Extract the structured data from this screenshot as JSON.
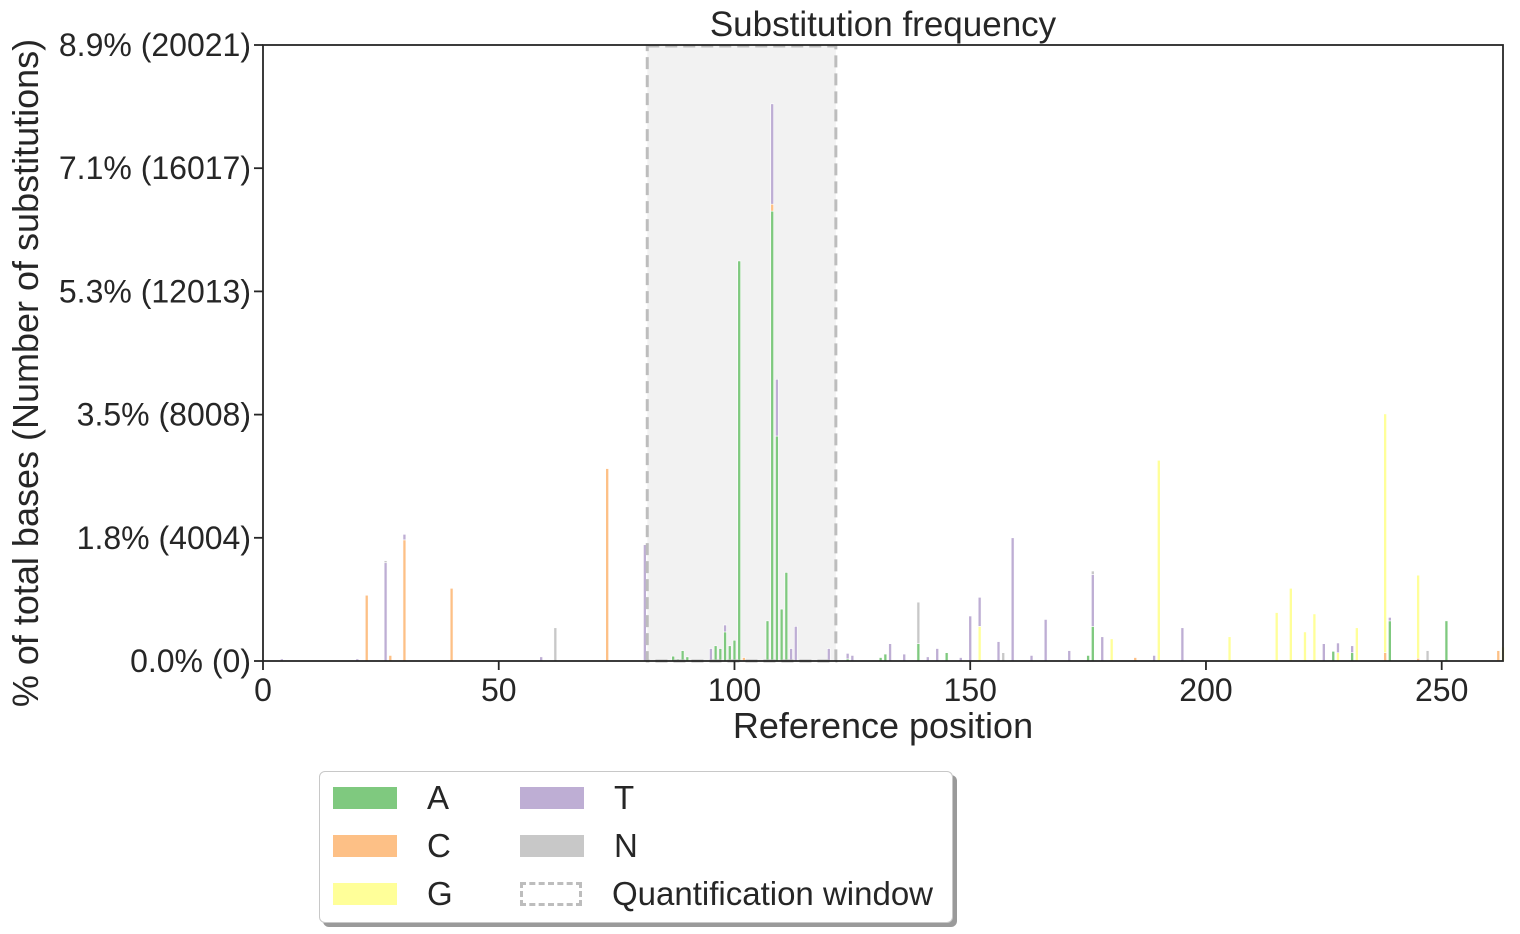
{
  "chart_data": {
    "type": "bar",
    "title": "Substitution frequency",
    "xlabel": "Reference position",
    "ylabel": "% of total bases (Number of substitutions)",
    "xlim": [
      0,
      263
    ],
    "ylim": [
      0,
      8.9
    ],
    "xticks": [
      0,
      50,
      100,
      150,
      200,
      250
    ],
    "yticks": [
      {
        "value": 0.0,
        "label": "0.0% (0)"
      },
      {
        "value": 1.78,
        "label": "1.8% (4004)"
      },
      {
        "value": 3.56,
        "label": "3.5% (8008)"
      },
      {
        "value": 5.34,
        "label": "5.3% (12013)"
      },
      {
        "value": 7.12,
        "label": "7.1% (16017)"
      },
      {
        "value": 8.9,
        "label": "8.9% (20021)"
      }
    ],
    "quantification_window": {
      "start": 81.5,
      "end": 121.5
    },
    "stacked": true,
    "series": [
      {
        "name": "A",
        "color": "#7fc97f",
        "values": [
          [
            87,
            0.07
          ],
          [
            88,
            0.03
          ],
          [
            89,
            0.15
          ],
          [
            90,
            0.06
          ],
          [
            96,
            0.22
          ],
          [
            97,
            0.18
          ],
          [
            98,
            0.42
          ],
          [
            99,
            0.22
          ],
          [
            100,
            0.3
          ],
          [
            101,
            5.78
          ],
          [
            107,
            0.58
          ],
          [
            108,
            6.5
          ],
          [
            109,
            3.25
          ],
          [
            110,
            0.75
          ],
          [
            111,
            1.28
          ],
          [
            124,
            0.03
          ],
          [
            131,
            0.05
          ],
          [
            132,
            0.1
          ],
          [
            139,
            0.25
          ],
          [
            145,
            0.12
          ],
          [
            175,
            0.08
          ],
          [
            176,
            0.5
          ],
          [
            227,
            0.14
          ],
          [
            231,
            0.12
          ],
          [
            239,
            0.58
          ],
          [
            251,
            0.58
          ]
        ]
      },
      {
        "name": "C",
        "color": "#fdc086",
        "values": [
          [
            22,
            0.95
          ],
          [
            27,
            0.08
          ],
          [
            30,
            1.75
          ],
          [
            40,
            1.05
          ],
          [
            73,
            2.78
          ],
          [
            102,
            0.05
          ],
          [
            108,
            0.1
          ],
          [
            185,
            0.05
          ],
          [
            238,
            0.12
          ],
          [
            245,
            0.04
          ],
          [
            262,
            0.15
          ]
        ]
      },
      {
        "name": "G",
        "color": "#ffff99",
        "values": [
          [
            152,
            0.5
          ],
          [
            180,
            0.32
          ],
          [
            190,
            2.9
          ],
          [
            205,
            0.35
          ],
          [
            215,
            0.7
          ],
          [
            218,
            1.05
          ],
          [
            221,
            0.42
          ],
          [
            223,
            0.68
          ],
          [
            228,
            0.12
          ],
          [
            232,
            0.48
          ],
          [
            238,
            3.45
          ],
          [
            245,
            1.2
          ],
          [
            263,
            0.2
          ]
        ]
      },
      {
        "name": "T",
        "color": "#beaed4",
        "values": [
          [
            4,
            0.03
          ],
          [
            20,
            0.03
          ],
          [
            26,
            1.42
          ],
          [
            30,
            0.08
          ],
          [
            59,
            0.06
          ],
          [
            81,
            1.68
          ],
          [
            95,
            0.18
          ],
          [
            98,
            0.1
          ],
          [
            108,
            1.45
          ],
          [
            109,
            0.82
          ],
          [
            112,
            0.18
          ],
          [
            113,
            0.5
          ],
          [
            120,
            0.18
          ],
          [
            124,
            0.08
          ],
          [
            125,
            0.08
          ],
          [
            133,
            0.25
          ],
          [
            136,
            0.1
          ],
          [
            141,
            0.06
          ],
          [
            143,
            0.18
          ],
          [
            148,
            0.05
          ],
          [
            150,
            0.65
          ],
          [
            152,
            0.42
          ],
          [
            156,
            0.28
          ],
          [
            159,
            1.78
          ],
          [
            163,
            0.08
          ],
          [
            166,
            0.6
          ],
          [
            171,
            0.15
          ],
          [
            176,
            0.75
          ],
          [
            178,
            0.35
          ],
          [
            189,
            0.08
          ],
          [
            195,
            0.48
          ],
          [
            225,
            0.25
          ],
          [
            228,
            0.14
          ],
          [
            231,
            0.1
          ],
          [
            239,
            0.05
          ]
        ]
      },
      {
        "name": "N",
        "color": "#c8c8c8",
        "values": [
          [
            26,
            0.03
          ],
          [
            62,
            0.48
          ],
          [
            139,
            0.6
          ],
          [
            157,
            0.12
          ],
          [
            176,
            0.05
          ],
          [
            247,
            0.15
          ]
        ]
      }
    ],
    "legend": {
      "placement": "below",
      "entries": [
        {
          "label": "A",
          "color": "#7fc97f"
        },
        {
          "label": "C",
          "color": "#fdc086"
        },
        {
          "label": "G",
          "color": "#ffff99"
        },
        {
          "label": "T",
          "color": "#beaed4"
        },
        {
          "label": "N",
          "color": "#c8c8c8"
        },
        {
          "label": "Quantification window",
          "style": "dashed",
          "color": "#bdbdbd"
        }
      ]
    },
    "window_fill_color": "#f2f2f2",
    "window_edge_color": "#bdbdbd"
  }
}
